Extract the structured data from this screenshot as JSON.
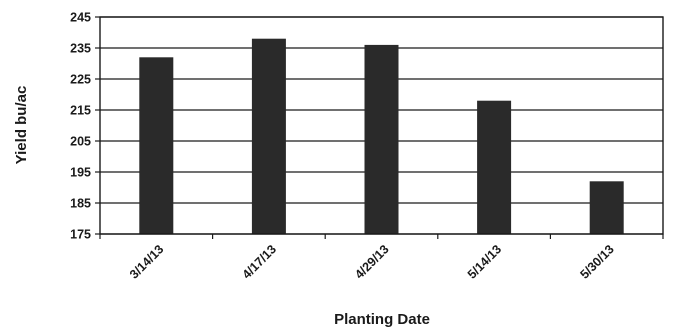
{
  "chart_data": {
    "type": "bar",
    "title": "",
    "xlabel": "Planting Date",
    "ylabel": "Yield bu/ac",
    "categories": [
      "3/14/13",
      "4/17/13",
      "4/29/13",
      "5/14/13",
      "5/30/13"
    ],
    "values": [
      232,
      238,
      236,
      218,
      192
    ],
    "ylim": [
      175,
      245
    ],
    "yticks": [
      175,
      185,
      195,
      205,
      215,
      225,
      235,
      245
    ],
    "grid": true,
    "legend": "none",
    "colors": {
      "bar": "#2a2a2a",
      "grid": "#1a1a1a",
      "axis": "#1a1a1a"
    }
  }
}
